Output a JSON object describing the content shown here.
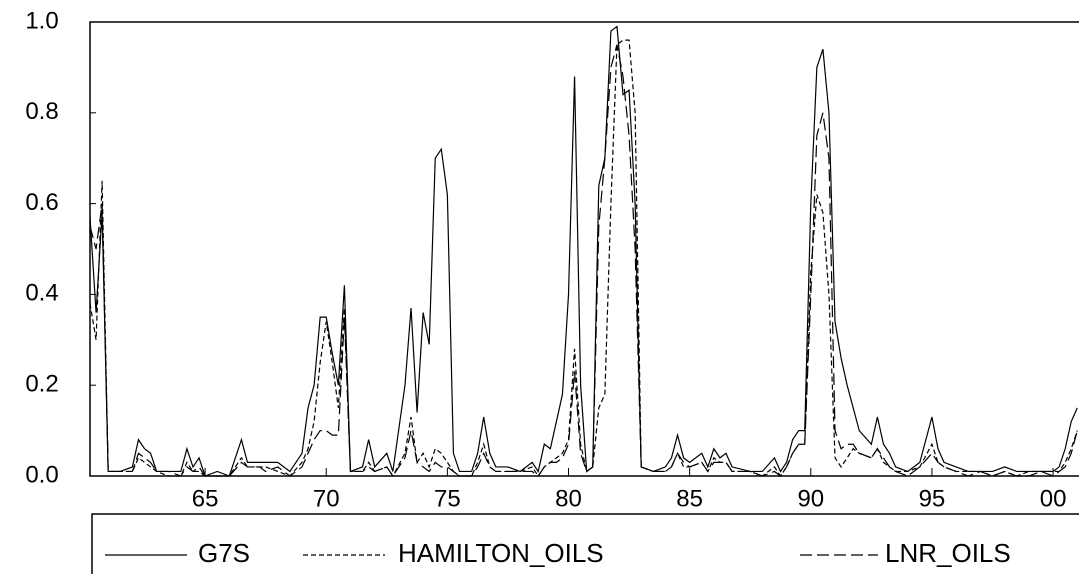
{
  "chart_data": {
    "type": "line",
    "x": [
      60.25,
      60.5,
      60.75,
      61.0,
      61.5,
      62.0,
      62.25,
      62.5,
      62.75,
      63.0,
      63.5,
      64.0,
      64.25,
      64.5,
      64.75,
      65.0,
      65.5,
      66.0,
      66.5,
      66.75,
      67.25,
      67.5,
      68.0,
      68.5,
      69.0,
      69.25,
      69.5,
      69.75,
      70.0,
      70.25,
      70.5,
      70.75,
      71.0,
      71.5,
      71.75,
      72.0,
      72.5,
      72.75,
      73.25,
      73.5,
      73.75,
      74.0,
      74.25,
      74.5,
      74.75,
      75.0,
      75.25,
      75.5,
      76.0,
      76.25,
      76.5,
      76.75,
      77.0,
      77.5,
      78.0,
      78.5,
      78.75,
      79.0,
      79.25,
      79.5,
      79.75,
      80.0,
      80.25,
      80.5,
      80.75,
      81.0,
      81.25,
      81.5,
      81.75,
      82.0,
      82.25,
      82.5,
      82.75,
      83.0,
      83.5,
      84.0,
      84.25,
      84.5,
      84.75,
      85.0,
      85.5,
      85.75,
      86.0,
      86.25,
      86.5,
      86.75,
      87.5,
      88.0,
      88.5,
      88.75,
      89.0,
      89.25,
      89.5,
      89.75,
      90.0,
      90.25,
      90.5,
      90.75,
      91.0,
      91.25,
      91.5,
      91.75,
      92.0,
      92.5,
      92.75,
      93.0,
      93.25,
      93.5,
      94.0,
      94.5,
      95.0,
      95.25,
      95.5,
      96.0,
      96.5,
      97.0,
      97.5,
      98.0,
      98.5,
      99.0,
      99.5,
      100.0,
      100.25,
      100.5,
      100.75,
      101.0
    ],
    "series": [
      {
        "name": "G7S",
        "color": "#000000",
        "style": "solid",
        "values": [
          0.57,
          0.36,
          0.58,
          0.01,
          0.01,
          0.02,
          0.08,
          0.06,
          0.05,
          0.01,
          0.01,
          0.01,
          0.06,
          0.02,
          0.04,
          0.0,
          0.01,
          0.0,
          0.08,
          0.03,
          0.03,
          0.03,
          0.03,
          0.01,
          0.05,
          0.15,
          0.2,
          0.35,
          0.35,
          0.27,
          0.2,
          0.42,
          0.01,
          0.02,
          0.08,
          0.02,
          0.05,
          0.01,
          0.2,
          0.37,
          0.14,
          0.36,
          0.29,
          0.7,
          0.72,
          0.62,
          0.05,
          0.01,
          0.01,
          0.05,
          0.13,
          0.05,
          0.02,
          0.02,
          0.01,
          0.03,
          0.01,
          0.07,
          0.06,
          0.12,
          0.18,
          0.4,
          0.88,
          0.2,
          0.01,
          0.02,
          0.64,
          0.7,
          0.98,
          0.99,
          0.84,
          0.85,
          0.6,
          0.02,
          0.01,
          0.02,
          0.04,
          0.09,
          0.04,
          0.03,
          0.05,
          0.02,
          0.06,
          0.04,
          0.05,
          0.02,
          0.01,
          0.01,
          0.04,
          0.01,
          0.03,
          0.08,
          0.1,
          0.1,
          0.6,
          0.9,
          0.94,
          0.8,
          0.34,
          0.26,
          0.2,
          0.15,
          0.1,
          0.07,
          0.13,
          0.07,
          0.05,
          0.02,
          0.01,
          0.03,
          0.13,
          0.06,
          0.03,
          0.02,
          0.01,
          0.01,
          0.01,
          0.02,
          0.01,
          0.01,
          0.01,
          0.01,
          0.02,
          0.06,
          0.12,
          0.15
        ]
      },
      {
        "name": "HAMILTON_OILS",
        "color": "#000000",
        "style": "short-dash",
        "values": [
          0.38,
          0.3,
          0.65,
          0.01,
          0.01,
          0.01,
          0.04,
          0.03,
          0.02,
          0.01,
          0.0,
          0.0,
          0.03,
          0.01,
          0.01,
          0.0,
          0.0,
          0.0,
          0.04,
          0.02,
          0.02,
          0.02,
          0.01,
          0.0,
          0.03,
          0.06,
          0.12,
          0.25,
          0.34,
          0.25,
          0.15,
          0.37,
          0.01,
          0.01,
          0.03,
          0.01,
          0.02,
          0.0,
          0.05,
          0.13,
          0.03,
          0.05,
          0.02,
          0.06,
          0.05,
          0.03,
          0.01,
          0.0,
          0.0,
          0.03,
          0.07,
          0.02,
          0.01,
          0.01,
          0.01,
          0.02,
          0.0,
          0.02,
          0.03,
          0.04,
          0.05,
          0.08,
          0.28,
          0.07,
          0.01,
          0.02,
          0.15,
          0.18,
          0.6,
          0.95,
          0.96,
          0.96,
          0.8,
          0.02,
          0.01,
          0.01,
          0.02,
          0.05,
          0.02,
          0.02,
          0.03,
          0.01,
          0.04,
          0.03,
          0.03,
          0.01,
          0.01,
          0.0,
          0.02,
          0.0,
          0.02,
          0.05,
          0.07,
          0.07,
          0.45,
          0.62,
          0.58,
          0.4,
          0.04,
          0.02,
          0.04,
          0.06,
          0.05,
          0.04,
          0.06,
          0.03,
          0.02,
          0.01,
          0.01,
          0.02,
          0.07,
          0.03,
          0.02,
          0.01,
          0.01,
          0.01,
          0.0,
          0.01,
          0.0,
          0.01,
          0.01,
          0.01,
          0.01,
          0.03,
          0.06,
          0.1
        ]
      },
      {
        "name": "LNR_OILS",
        "color": "#000000",
        "style": "long-dash",
        "values": [
          0.55,
          0.5,
          0.6,
          0.01,
          0.01,
          0.01,
          0.05,
          0.04,
          0.03,
          0.01,
          0.01,
          0.0,
          0.02,
          0.01,
          0.02,
          0.0,
          0.0,
          0.0,
          0.03,
          0.02,
          0.02,
          0.01,
          0.02,
          0.0,
          0.02,
          0.05,
          0.08,
          0.1,
          0.1,
          0.09,
          0.09,
          0.35,
          0.01,
          0.01,
          0.02,
          0.01,
          0.02,
          0.0,
          0.04,
          0.1,
          0.03,
          0.02,
          0.01,
          0.03,
          0.02,
          0.02,
          0.01,
          0.0,
          0.0,
          0.02,
          0.05,
          0.02,
          0.01,
          0.01,
          0.01,
          0.01,
          0.0,
          0.02,
          0.03,
          0.03,
          0.04,
          0.07,
          0.23,
          0.05,
          0.01,
          0.02,
          0.55,
          0.7,
          0.9,
          0.95,
          0.88,
          0.75,
          0.5,
          0.02,
          0.01,
          0.01,
          0.02,
          0.05,
          0.03,
          0.02,
          0.03,
          0.01,
          0.03,
          0.03,
          0.03,
          0.01,
          0.01,
          0.0,
          0.01,
          0.0,
          0.02,
          0.05,
          0.07,
          0.07,
          0.4,
          0.75,
          0.8,
          0.7,
          0.1,
          0.06,
          0.07,
          0.07,
          0.05,
          0.04,
          0.06,
          0.04,
          0.02,
          0.01,
          0.0,
          0.02,
          0.05,
          0.03,
          0.02,
          0.01,
          0.0,
          0.01,
          0.0,
          0.01,
          0.0,
          0.0,
          0.01,
          0.0,
          0.01,
          0.02,
          0.05,
          0.1
        ]
      }
    ],
    "xlim": [
      60.25,
      101.07
    ],
    "xticks": [
      65,
      70,
      75,
      80,
      85,
      90,
      95,
      {
        "value": 100,
        "label": "00"
      }
    ],
    "ylim": [
      0,
      1
    ],
    "yticks": [
      {
        "value": 0,
        "label": "0.0"
      },
      0.2,
      0.4,
      0.6,
      0.8,
      {
        "value": 1,
        "label": "1.0"
      }
    ],
    "grid": false,
    "legend": "bottom"
  }
}
